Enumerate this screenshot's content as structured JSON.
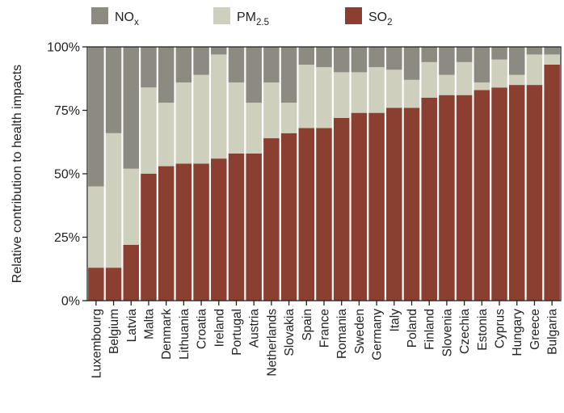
{
  "chart_data": {
    "type": "bar",
    "stacked": true,
    "title": "",
    "xlabel": "",
    "ylabel": "Relative contribution to health impacts",
    "ylim": [
      0,
      100
    ],
    "yticks": [
      "0%",
      "25%",
      "50%",
      "75%",
      "100%"
    ],
    "yticks_values": [
      0,
      25,
      50,
      75,
      100
    ],
    "grid": false,
    "legend_position": "top",
    "categories": [
      "Luxembourg",
      "Belgium",
      "Latvia",
      "Malta",
      "Denmark",
      "Lithuania",
      "Croatia",
      "Ireland",
      "Portugal",
      "Austria",
      "Netherlands",
      "Slovakia",
      "Spain",
      "France",
      "Romania",
      "Sweden",
      "Germany",
      "Italy",
      "Poland",
      "Finland",
      "Slovenia",
      "Czechia",
      "Estonia",
      "Cyprus",
      "Hungary",
      "Greece",
      "Bulgaria"
    ],
    "series": [
      {
        "name": "SO2",
        "label_main": "SO",
        "label_sub": "2",
        "color": "#8b3f30",
        "values": [
          13,
          13,
          22,
          50,
          53,
          54,
          54,
          56,
          58,
          58,
          64,
          66,
          68,
          68,
          72,
          74,
          74,
          76,
          76,
          80,
          81,
          81,
          83,
          84,
          85,
          85,
          93
        ]
      },
      {
        "name": "PM2.5",
        "label_main": "PM",
        "label_sub": "2.5",
        "color": "#cfcfbe",
        "values": [
          32,
          53,
          30,
          34,
          25,
          32,
          35,
          41,
          28,
          20,
          22,
          12,
          25,
          24,
          18,
          16,
          18,
          15,
          11,
          14,
          8,
          13,
          3,
          11,
          4,
          12,
          4
        ]
      },
      {
        "name": "NOx",
        "label_main": "NO",
        "label_sub": "x",
        "color": "#8d8a82",
        "values": [
          55,
          34,
          48,
          16,
          22,
          14,
          11,
          3,
          14,
          22,
          14,
          22,
          7,
          8,
          10,
          10,
          8,
          9,
          13,
          6,
          11,
          6,
          14,
          5,
          11,
          3,
          3
        ]
      }
    ],
    "legend_order": [
      "NOx",
      "PM2.5",
      "SO2"
    ]
  }
}
